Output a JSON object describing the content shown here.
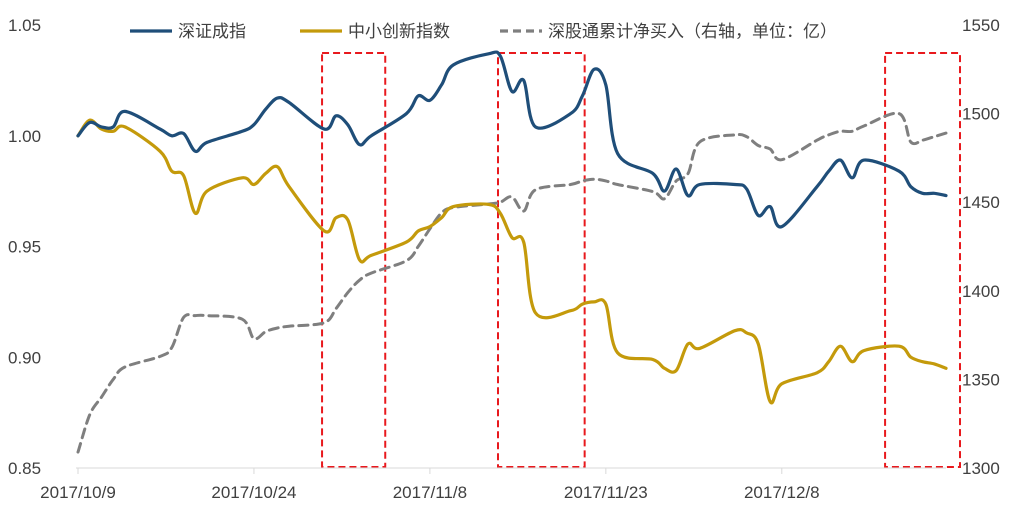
{
  "chart_data": {
    "type": "line",
    "title": "",
    "xlabel": "",
    "ylabel": "",
    "y2label": "",
    "x_ticks": [
      "2017/10/9",
      "2017/10/24",
      "2017/11/8",
      "2017/11/23",
      "2017/12/8"
    ],
    "x_range": [
      "2017/10/9",
      "2017/12/22"
    ],
    "ylim": [
      0.85,
      1.05
    ],
    "y_ticks": [
      "0.85",
      "0.90",
      "0.95",
      "1.00",
      "1.05"
    ],
    "y2lim": [
      1300,
      1550
    ],
    "y2_ticks": [
      "1300",
      "1350",
      "1400",
      "1450",
      "1500",
      "1550"
    ],
    "grid": false,
    "legend": {
      "placement": "top"
    },
    "series": [
      {
        "name": "深证成指",
        "axis": "left",
        "color": "#1F4E79",
        "style": "solid",
        "points": [
          [
            "2017/10/9",
            1.0
          ],
          [
            "2017/10/10",
            1.006
          ],
          [
            "2017/10/11",
            1.004
          ],
          [
            "2017/10/12",
            1.004
          ],
          [
            "2017/10/13",
            1.011
          ],
          [
            "2017/10/16",
            1.003
          ],
          [
            "2017/10/17",
            1.0
          ],
          [
            "2017/10/18",
            1.001
          ],
          [
            "2017/10/19",
            0.993
          ],
          [
            "2017/10/20",
            0.997
          ],
          [
            "2017/10/23",
            1.002
          ],
          [
            "2017/10/24",
            1.005
          ],
          [
            "2017/10/25",
            1.012
          ],
          [
            "2017/10/26",
            1.017
          ],
          [
            "2017/10/27",
            1.015
          ],
          [
            "2017/10/30",
            1.003
          ],
          [
            "2017/10/31",
            1.009
          ],
          [
            "2017/11/1",
            1.005
          ],
          [
            "2017/11/2",
            0.996
          ],
          [
            "2017/11/3",
            1.0
          ],
          [
            "2017/11/6",
            1.01
          ],
          [
            "2017/11/7",
            1.018
          ],
          [
            "2017/11/8",
            1.016
          ],
          [
            "2017/11/9",
            1.023
          ],
          [
            "2017/11/10",
            1.032
          ],
          [
            "2017/11/13",
            1.037
          ],
          [
            "2017/11/14",
            1.036
          ],
          [
            "2017/11/15",
            1.02
          ],
          [
            "2017/11/16",
            1.025
          ],
          [
            "2017/11/17",
            1.004
          ],
          [
            "2017/11/20",
            1.01
          ],
          [
            "2017/11/21",
            1.018
          ],
          [
            "2017/11/22",
            1.03
          ],
          [
            "2017/11/23",
            1.023
          ],
          [
            "2017/11/24",
            0.992
          ],
          [
            "2017/11/27",
            0.983
          ],
          [
            "2017/11/28",
            0.975
          ],
          [
            "2017/11/29",
            0.985
          ],
          [
            "2017/11/30",
            0.973
          ],
          [
            "2017/12/1",
            0.978
          ],
          [
            "2017/12/4",
            0.978
          ],
          [
            "2017/12/5",
            0.976
          ],
          [
            "2017/12/6",
            0.964
          ],
          [
            "2017/12/7",
            0.968
          ],
          [
            "2017/12/8",
            0.959
          ],
          [
            "2017/12/11",
            0.977
          ],
          [
            "2017/12/12",
            0.984
          ],
          [
            "2017/12/13",
            0.989
          ],
          [
            "2017/12/14",
            0.981
          ],
          [
            "2017/12/15",
            0.989
          ],
          [
            "2017/12/18",
            0.984
          ],
          [
            "2017/12/19",
            0.977
          ],
          [
            "2017/12/20",
            0.974
          ],
          [
            "2017/12/21",
            0.974
          ],
          [
            "2017/12/22",
            0.973
          ]
        ]
      },
      {
        "name": "中小创新指数",
        "axis": "left",
        "color": "#C49A0B",
        "style": "solid",
        "points": [
          [
            "2017/10/9",
            1.0
          ],
          [
            "2017/10/10",
            1.007
          ],
          [
            "2017/10/11",
            1.003
          ],
          [
            "2017/10/12",
            1.002
          ],
          [
            "2017/10/13",
            1.004
          ],
          [
            "2017/10/16",
            0.993
          ],
          [
            "2017/10/17",
            0.984
          ],
          [
            "2017/10/18",
            0.982
          ],
          [
            "2017/10/19",
            0.965
          ],
          [
            "2017/10/20",
            0.975
          ],
          [
            "2017/10/23",
            0.981
          ],
          [
            "2017/10/24",
            0.978
          ],
          [
            "2017/10/25",
            0.983
          ],
          [
            "2017/10/26",
            0.986
          ],
          [
            "2017/10/27",
            0.977
          ],
          [
            "2017/10/30",
            0.957
          ],
          [
            "2017/10/31",
            0.963
          ],
          [
            "2017/11/1",
            0.962
          ],
          [
            "2017/11/2",
            0.944
          ],
          [
            "2017/11/3",
            0.946
          ],
          [
            "2017/11/6",
            0.952
          ],
          [
            "2017/11/7",
            0.957
          ],
          [
            "2017/11/8",
            0.959
          ],
          [
            "2017/11/9",
            0.963
          ],
          [
            "2017/11/10",
            0.968
          ],
          [
            "2017/11/13",
            0.969
          ],
          [
            "2017/11/14",
            0.965
          ],
          [
            "2017/11/15",
            0.954
          ],
          [
            "2017/11/16",
            0.952
          ],
          [
            "2017/11/17",
            0.92
          ],
          [
            "2017/11/20",
            0.921
          ],
          [
            "2017/11/21",
            0.924
          ],
          [
            "2017/11/22",
            0.925
          ],
          [
            "2017/11/23",
            0.924
          ],
          [
            "2017/11/24",
            0.902
          ],
          [
            "2017/11/27",
            0.899
          ],
          [
            "2017/11/28",
            0.895
          ],
          [
            "2017/11/29",
            0.894
          ],
          [
            "2017/11/30",
            0.906
          ],
          [
            "2017/12/1",
            0.904
          ],
          [
            "2017/12/4",
            0.912
          ],
          [
            "2017/12/5",
            0.911
          ],
          [
            "2017/12/6",
            0.906
          ],
          [
            "2017/12/7",
            0.88
          ],
          [
            "2017/12/8",
            0.888
          ],
          [
            "2017/12/11",
            0.893
          ],
          [
            "2017/12/12",
            0.898
          ],
          [
            "2017/12/13",
            0.905
          ],
          [
            "2017/12/14",
            0.898
          ],
          [
            "2017/12/15",
            0.903
          ],
          [
            "2017/12/18",
            0.905
          ],
          [
            "2017/12/19",
            0.9
          ],
          [
            "2017/12/20",
            0.898
          ],
          [
            "2017/12/21",
            0.897
          ],
          [
            "2017/12/22",
            0.895
          ]
        ]
      },
      {
        "name": "深股通累计净买入（右轴，单位：亿）",
        "axis": "right",
        "color": "#7F7F7F",
        "style": "dashed",
        "points": [
          [
            "2017/10/9",
            1309
          ],
          [
            "2017/10/10",
            1330
          ],
          [
            "2017/10/11",
            1340
          ],
          [
            "2017/10/12",
            1350
          ],
          [
            "2017/10/13",
            1357
          ],
          [
            "2017/10/16",
            1363
          ],
          [
            "2017/10/17",
            1368
          ],
          [
            "2017/10/18",
            1385
          ],
          [
            "2017/10/19",
            1386
          ],
          [
            "2017/10/20",
            1386
          ],
          [
            "2017/10/23",
            1384
          ],
          [
            "2017/10/24",
            1373
          ],
          [
            "2017/10/25",
            1377
          ],
          [
            "2017/10/26",
            1379
          ],
          [
            "2017/10/27",
            1380
          ],
          [
            "2017/10/30",
            1382
          ],
          [
            "2017/10/31",
            1390
          ],
          [
            "2017/11/1",
            1399
          ],
          [
            "2017/11/2",
            1406
          ],
          [
            "2017/11/3",
            1410
          ],
          [
            "2017/11/6",
            1417
          ],
          [
            "2017/11/7",
            1425
          ],
          [
            "2017/11/8",
            1435
          ],
          [
            "2017/11/9",
            1444
          ],
          [
            "2017/11/10",
            1447
          ],
          [
            "2017/11/13",
            1449
          ],
          [
            "2017/11/14",
            1450
          ],
          [
            "2017/11/15",
            1453
          ],
          [
            "2017/11/16",
            1445
          ],
          [
            "2017/11/17",
            1457
          ],
          [
            "2017/11/20",
            1460
          ],
          [
            "2017/11/21",
            1462
          ],
          [
            "2017/11/22",
            1463
          ],
          [
            "2017/11/23",
            1462
          ],
          [
            "2017/11/24",
            1460
          ],
          [
            "2017/11/27",
            1456
          ],
          [
            "2017/11/28",
            1452
          ],
          [
            "2017/11/29",
            1462
          ],
          [
            "2017/11/30",
            1466
          ],
          [
            "2017/12/1",
            1484
          ],
          [
            "2017/12/4",
            1488
          ],
          [
            "2017/12/5",
            1487
          ],
          [
            "2017/12/6",
            1482
          ],
          [
            "2017/12/7",
            1480
          ],
          [
            "2017/12/8",
            1474
          ],
          [
            "2017/12/11",
            1485
          ],
          [
            "2017/12/12",
            1488
          ],
          [
            "2017/12/13",
            1490
          ],
          [
            "2017/12/14",
            1490
          ],
          [
            "2017/12/15",
            1493
          ],
          [
            "2017/12/18",
            1500
          ],
          [
            "2017/12/19",
            1484
          ],
          [
            "2017/12/20",
            1485
          ],
          [
            "2017/12/21",
            1487
          ],
          [
            "2017/12/22",
            1489
          ]
        ]
      }
    ],
    "highlight_ranges": [
      [
        "2017/10/31",
        "2017/11/3"
      ],
      [
        "2017/11/15",
        "2017/11/20"
      ],
      [
        "2017/12/18",
        "2017/12/22"
      ]
    ]
  }
}
